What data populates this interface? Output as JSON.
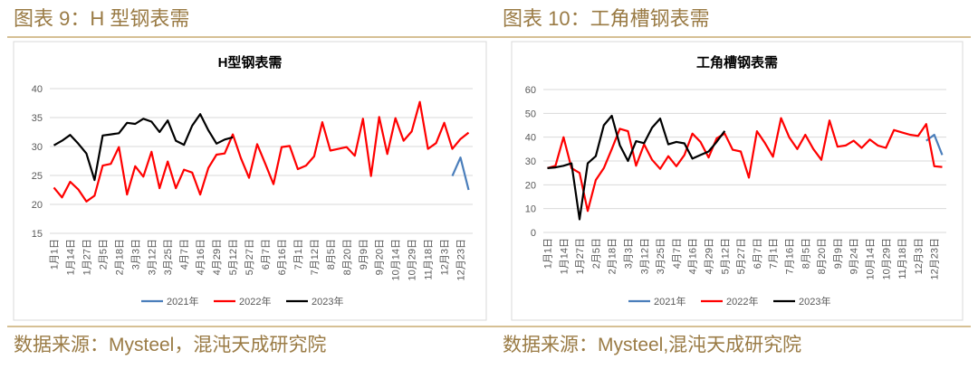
{
  "panels": [
    {
      "caption": "图表 9：H 型钢表需",
      "source": "数据来源：Mysteel，混沌天成研究院"
    },
    {
      "caption": "图表 10：工角槽钢表需",
      "source": "数据来源：Mysteel,混沌天成研究院"
    }
  ],
  "chart_data": [
    {
      "type": "line",
      "title": "H型钢表需",
      "categories": [
        "1月1日",
        null,
        "1月14日",
        null,
        "1月27日",
        null,
        "2月5日",
        null,
        "2月18日",
        null,
        "3月3日",
        null,
        "3月12日",
        null,
        "3月25日",
        null,
        "4月7日",
        null,
        "4月16日",
        null,
        "4月29日",
        null,
        "5月12日",
        null,
        "5月27日",
        null,
        "6月7日",
        null,
        "6月16日",
        null,
        "7月1日",
        null,
        "7月12日",
        null,
        "8月5日",
        null,
        "8月20日",
        null,
        "9月9日",
        null,
        "9月20日",
        null,
        "10月14日",
        null,
        "10月29日",
        null,
        "11月18日",
        null,
        "12月3日",
        null,
        "12月23日",
        null
      ],
      "ylim": [
        15,
        40
      ],
      "yticks": [
        15,
        20,
        25,
        30,
        35,
        40
      ],
      "grid": true,
      "series": [
        {
          "name": "2021年",
          "color": "#4a7ebb",
          "values": [
            null,
            null,
            null,
            null,
            null,
            null,
            null,
            null,
            null,
            null,
            null,
            null,
            null,
            null,
            null,
            null,
            null,
            null,
            null,
            null,
            null,
            null,
            null,
            null,
            null,
            null,
            null,
            null,
            null,
            null,
            null,
            null,
            null,
            null,
            null,
            null,
            null,
            null,
            null,
            null,
            null,
            null,
            null,
            null,
            null,
            null,
            null,
            null,
            null,
            24.9,
            28.1,
            22.5
          ]
        },
        {
          "name": "2022年",
          "color": "#ff0000",
          "values": [
            22.9,
            21.2,
            23.9,
            22.6,
            20.5,
            21.5,
            26.7,
            27,
            29.9,
            21.7,
            26.6,
            24.8,
            29.1,
            22.8,
            27.4,
            22.8,
            26,
            25.5,
            21.7,
            26.3,
            28.6,
            28.8,
            32.1,
            28,
            24.6,
            30.4,
            27,
            23.5,
            29.9,
            30.1,
            26.1,
            26.7,
            28.3,
            34.2,
            29.3,
            29.6,
            29.9,
            28.4,
            34.8,
            24.9,
            35.1,
            28.7,
            34.9,
            31,
            32.6,
            37.7,
            29.6,
            30.6,
            34.1,
            29.6,
            31.3,
            32.4
          ]
        },
        {
          "name": "2023年",
          "color": "#000000",
          "values": [
            30.2,
            31,
            32,
            30.5,
            28.8,
            24.2,
            31.9,
            32.1,
            32.3,
            34.1,
            33.9,
            34.8,
            34.3,
            32.5,
            34.5,
            31,
            30.3,
            33.6,
            35.6,
            32.8,
            30.5,
            31.2,
            31.6,
            null,
            null,
            null,
            null,
            null,
            null,
            null,
            null,
            null,
            null,
            null,
            null,
            null,
            null,
            null,
            null,
            null,
            null,
            null,
            null,
            null,
            null,
            null,
            null,
            null,
            null,
            null,
            null,
            null
          ]
        }
      ]
    },
    {
      "type": "line",
      "title": "工角槽钢表需",
      "categories": [
        "1月1日",
        null,
        "1月14日",
        null,
        "1月27日",
        null,
        "2月5日",
        null,
        "2月18日",
        null,
        "3月3日",
        null,
        "3月12日",
        null,
        "3月25日",
        null,
        "4月7日",
        null,
        "4月16日",
        null,
        "4月29日",
        null,
        "5月12日",
        null,
        "5月27日",
        null,
        "6月7日",
        null,
        "7月1日",
        null,
        "7月16日",
        null,
        "8月5日",
        null,
        "8月20日",
        null,
        "9月9日",
        null,
        "9月24日",
        null,
        "10月14日",
        null,
        "10月29日",
        null,
        "11月18日",
        null,
        "12月3日",
        null,
        "12月23日",
        null
      ],
      "ylim": [
        0,
        60
      ],
      "yticks": [
        0,
        10,
        20,
        30,
        40,
        50,
        60
      ],
      "grid": true,
      "series": [
        {
          "name": "2021年",
          "color": "#4a7ebb",
          "values": [
            null,
            null,
            null,
            null,
            null,
            null,
            null,
            null,
            null,
            null,
            null,
            null,
            null,
            null,
            null,
            null,
            null,
            null,
            null,
            null,
            null,
            null,
            null,
            null,
            null,
            null,
            null,
            null,
            null,
            null,
            null,
            null,
            null,
            null,
            null,
            null,
            null,
            null,
            null,
            null,
            null,
            null,
            null,
            null,
            null,
            null,
            null,
            38.5,
            41,
            32.5
          ]
        },
        {
          "name": "2022年",
          "color": "#ff0000",
          "values": [
            27,
            28,
            40,
            27,
            25,
            9,
            22,
            27,
            35,
            43.5,
            42.5,
            28,
            37,
            30.5,
            26.7,
            32,
            27.8,
            32.5,
            41.5,
            38,
            31.5,
            39.5,
            41.5,
            34.7,
            34,
            23,
            42.5,
            37.5,
            31.8,
            48,
            40,
            35,
            41,
            35,
            30.5,
            47,
            36,
            36.5,
            38.5,
            35.5,
            39,
            36.5,
            35.5,
            43,
            42,
            41,
            40.5,
            45.5,
            27.8,
            27.5
          ]
        },
        {
          "name": "2023年",
          "color": "#000000",
          "values": [
            27,
            27.3,
            28,
            29,
            5.5,
            29,
            32,
            45,
            49,
            36.6,
            30,
            38.3,
            37.5,
            44,
            47.8,
            37,
            38,
            37.4,
            31,
            32.5,
            34,
            38,
            42.6,
            null,
            null,
            null,
            null,
            null,
            null,
            null,
            null,
            null,
            null,
            null,
            null,
            null,
            null,
            null,
            null,
            null,
            null,
            null,
            null,
            null,
            null,
            null,
            null,
            null,
            null,
            null
          ]
        }
      ]
    }
  ]
}
